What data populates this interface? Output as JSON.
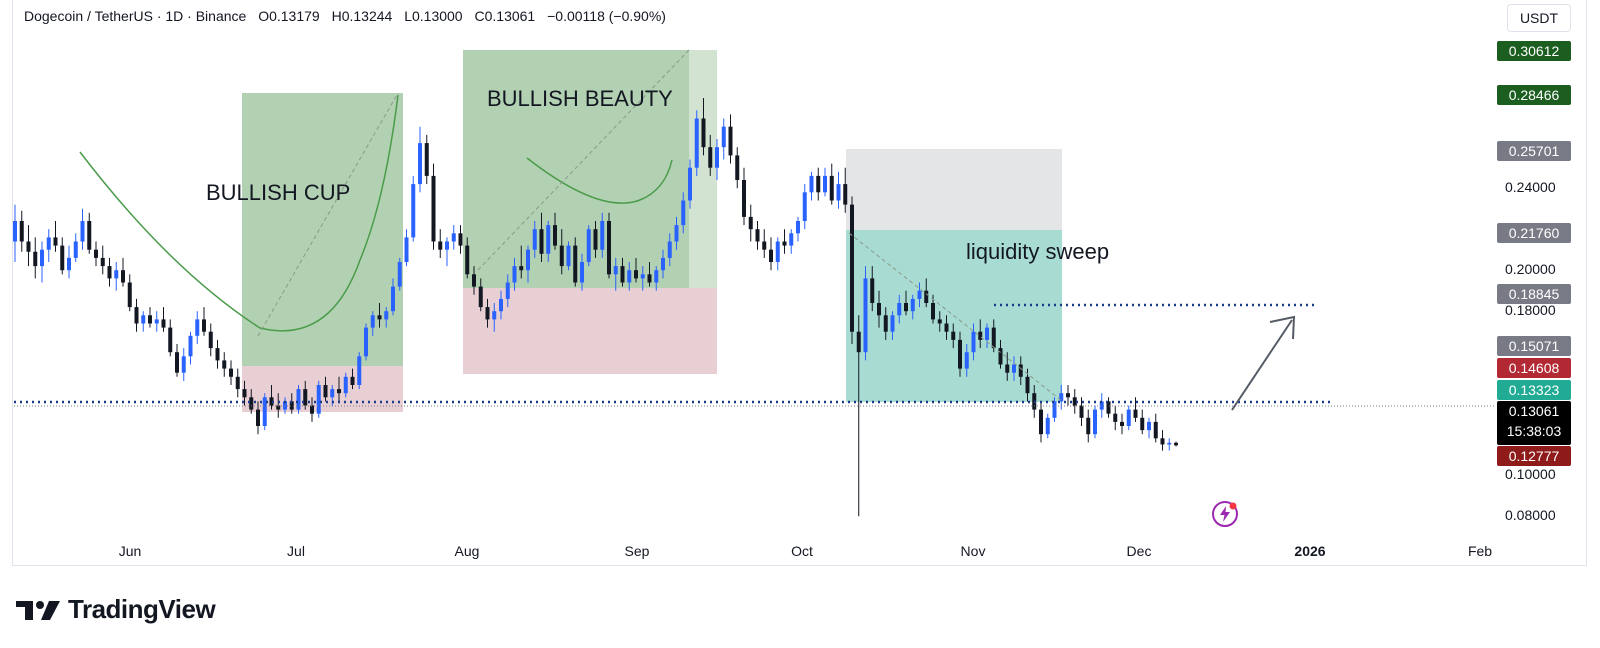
{
  "header": {
    "symbol": "Dogecoin / TetherUS · 1D · Binance",
    "open": "O0.13179",
    "high": "H0.13244",
    "low": "L0.13000",
    "close": "C0.13061",
    "change": "−0.00118 (−0.90%)"
  },
  "currency": "USDT",
  "annotations": {
    "cup": "BULLISH CUP",
    "beauty": "BULLISH BEAUTY",
    "sweep": "liquidity sweep"
  },
  "price_labels": [
    {
      "text": "0.30612",
      "color": "#1b5e20"
    },
    {
      "text": "0.28466",
      "color": "#1b5e20"
    },
    {
      "text": "0.25701",
      "color": "#787b86"
    },
    {
      "text": "0.21760",
      "color": "#787b86"
    },
    {
      "text": "0.18845",
      "color": "#787b86"
    },
    {
      "text": "0.15071",
      "color": "#787b86"
    },
    {
      "text": "0.14608",
      "color": "#b22833"
    },
    {
      "text": "0.13323",
      "color": "#22ab94"
    },
    {
      "text": "0.12777",
      "color": "#8e1a1a"
    }
  ],
  "current": {
    "price": "0.13061",
    "countdown": "15:38:03"
  },
  "y_ticks": [
    "0.24000",
    "0.20000",
    "0.18000",
    "0.10000",
    "0.08000"
  ],
  "x_ticks": [
    "Jun",
    "Jul",
    "Aug",
    "Sep",
    "Oct",
    "Nov",
    "Dec",
    "2026",
    "Feb"
  ],
  "brand": "TradingView",
  "icons": {
    "bolt": "lightning-icon",
    "logo": "tradingview-logo-icon"
  },
  "colors": {
    "up": "#2962ff",
    "down": "#131722",
    "cup_zone": "#a5c8a5",
    "sweep_zone": "#a8dcd2",
    "stop_zone": "#e8cfd4",
    "dotted_line": "#1a3a8a"
  },
  "chart_data": {
    "type": "candlestick",
    "ylim": [
      0.08,
      0.31
    ],
    "levels": {
      "support": 0.1325,
      "resistance": 0.18
    },
    "candles": [
      [
        0.23,
        0.248,
        0.22,
        0.24
      ],
      [
        0.24,
        0.245,
        0.225,
        0.23
      ],
      [
        0.23,
        0.238,
        0.218,
        0.225
      ],
      [
        0.225,
        0.232,
        0.212,
        0.218
      ],
      [
        0.218,
        0.23,
        0.21,
        0.226
      ],
      [
        0.226,
        0.236,
        0.22,
        0.232
      ],
      [
        0.232,
        0.24,
        0.225,
        0.228
      ],
      [
        0.228,
        0.232,
        0.214,
        0.216
      ],
      [
        0.216,
        0.228,
        0.212,
        0.222
      ],
      [
        0.222,
        0.234,
        0.22,
        0.23
      ],
      [
        0.23,
        0.246,
        0.226,
        0.24
      ],
      [
        0.24,
        0.244,
        0.224,
        0.226
      ],
      [
        0.226,
        0.23,
        0.218,
        0.222
      ],
      [
        0.222,
        0.228,
        0.214,
        0.218
      ],
      [
        0.218,
        0.222,
        0.208,
        0.212
      ],
      [
        0.212,
        0.22,
        0.206,
        0.216
      ],
      [
        0.216,
        0.222,
        0.208,
        0.21
      ],
      [
        0.21,
        0.214,
        0.196,
        0.198
      ],
      [
        0.198,
        0.202,
        0.186,
        0.19
      ],
      [
        0.19,
        0.196,
        0.186,
        0.194
      ],
      [
        0.194,
        0.198,
        0.188,
        0.19
      ],
      [
        0.19,
        0.196,
        0.186,
        0.192
      ],
      [
        0.192,
        0.198,
        0.186,
        0.188
      ],
      [
        0.188,
        0.192,
        0.174,
        0.176
      ],
      [
        0.176,
        0.18,
        0.164,
        0.166
      ],
      [
        0.166,
        0.178,
        0.162,
        0.174
      ],
      [
        0.174,
        0.186,
        0.17,
        0.184
      ],
      [
        0.184,
        0.196,
        0.18,
        0.192
      ],
      [
        0.192,
        0.198,
        0.184,
        0.186
      ],
      [
        0.186,
        0.19,
        0.174,
        0.178
      ],
      [
        0.178,
        0.182,
        0.168,
        0.172
      ],
      [
        0.172,
        0.176,
        0.164,
        0.168
      ],
      [
        0.168,
        0.172,
        0.16,
        0.164
      ],
      [
        0.164,
        0.168,
        0.154,
        0.158
      ],
      [
        0.158,
        0.162,
        0.15,
        0.154
      ],
      [
        0.154,
        0.158,
        0.146,
        0.148
      ],
      [
        0.148,
        0.152,
        0.136,
        0.14
      ],
      [
        0.14,
        0.156,
        0.138,
        0.154
      ],
      [
        0.154,
        0.16,
        0.148,
        0.15
      ],
      [
        0.15,
        0.156,
        0.144,
        0.148
      ],
      [
        0.148,
        0.154,
        0.146,
        0.152
      ],
      [
        0.152,
        0.156,
        0.146,
        0.148
      ],
      [
        0.148,
        0.16,
        0.146,
        0.158
      ],
      [
        0.158,
        0.162,
        0.148,
        0.15
      ],
      [
        0.15,
        0.154,
        0.142,
        0.146
      ],
      [
        0.146,
        0.162,
        0.144,
        0.16
      ],
      [
        0.16,
        0.164,
        0.152,
        0.154
      ],
      [
        0.154,
        0.16,
        0.15,
        0.158
      ],
      [
        0.158,
        0.164,
        0.152,
        0.156
      ],
      [
        0.156,
        0.166,
        0.154,
        0.164
      ],
      [
        0.164,
        0.168,
        0.158,
        0.16
      ],
      [
        0.16,
        0.176,
        0.158,
        0.174
      ],
      [
        0.174,
        0.19,
        0.172,
        0.188
      ],
      [
        0.188,
        0.196,
        0.184,
        0.194
      ],
      [
        0.194,
        0.2,
        0.188,
        0.192
      ],
      [
        0.192,
        0.198,
        0.188,
        0.196
      ],
      [
        0.196,
        0.212,
        0.194,
        0.208
      ],
      [
        0.208,
        0.222,
        0.206,
        0.22
      ],
      [
        0.22,
        0.236,
        0.218,
        0.232
      ],
      [
        0.232,
        0.262,
        0.23,
        0.258
      ],
      [
        0.258,
        0.286,
        0.254,
        0.278
      ],
      [
        0.278,
        0.282,
        0.258,
        0.262
      ],
      [
        0.262,
        0.268,
        0.226,
        0.23
      ],
      [
        0.23,
        0.236,
        0.222,
        0.226
      ],
      [
        0.226,
        0.232,
        0.218,
        0.23
      ],
      [
        0.23,
        0.238,
        0.226,
        0.234
      ],
      [
        0.234,
        0.238,
        0.224,
        0.228
      ],
      [
        0.228,
        0.232,
        0.212,
        0.214
      ],
      [
        0.214,
        0.218,
        0.204,
        0.208
      ],
      [
        0.208,
        0.212,
        0.196,
        0.198
      ],
      [
        0.198,
        0.202,
        0.188,
        0.192
      ],
      [
        0.192,
        0.2,
        0.186,
        0.196
      ],
      [
        0.196,
        0.206,
        0.192,
        0.202
      ],
      [
        0.202,
        0.214,
        0.198,
        0.21
      ],
      [
        0.21,
        0.222,
        0.206,
        0.218
      ],
      [
        0.218,
        0.228,
        0.212,
        0.216
      ],
      [
        0.216,
        0.228,
        0.21,
        0.226
      ],
      [
        0.226,
        0.24,
        0.222,
        0.236
      ],
      [
        0.236,
        0.244,
        0.22,
        0.224
      ],
      [
        0.224,
        0.24,
        0.22,
        0.238
      ],
      [
        0.238,
        0.244,
        0.226,
        0.228
      ],
      [
        0.228,
        0.236,
        0.214,
        0.218
      ],
      [
        0.218,
        0.23,
        0.216,
        0.228
      ],
      [
        0.228,
        0.232,
        0.208,
        0.21
      ],
      [
        0.21,
        0.224,
        0.206,
        0.22
      ],
      [
        0.22,
        0.238,
        0.218,
        0.236
      ],
      [
        0.236,
        0.24,
        0.222,
        0.226
      ],
      [
        0.226,
        0.244,
        0.222,
        0.24
      ],
      [
        0.24,
        0.244,
        0.212,
        0.214
      ],
      [
        0.214,
        0.222,
        0.206,
        0.218
      ],
      [
        0.218,
        0.222,
        0.208,
        0.21
      ],
      [
        0.21,
        0.22,
        0.206,
        0.216
      ],
      [
        0.216,
        0.222,
        0.21,
        0.212
      ],
      [
        0.212,
        0.218,
        0.206,
        0.214
      ],
      [
        0.214,
        0.22,
        0.208,
        0.21
      ],
      [
        0.21,
        0.218,
        0.206,
        0.216
      ],
      [
        0.216,
        0.226,
        0.212,
        0.222
      ],
      [
        0.222,
        0.234,
        0.218,
        0.23
      ],
      [
        0.23,
        0.242,
        0.226,
        0.238
      ],
      [
        0.238,
        0.254,
        0.234,
        0.25
      ],
      [
        0.25,
        0.27,
        0.246,
        0.266
      ],
      [
        0.266,
        0.294,
        0.262,
        0.29
      ],
      [
        0.29,
        0.3,
        0.272,
        0.276
      ],
      [
        0.276,
        0.282,
        0.262,
        0.266
      ],
      [
        0.266,
        0.28,
        0.26,
        0.276
      ],
      [
        0.276,
        0.29,
        0.27,
        0.286
      ],
      [
        0.286,
        0.292,
        0.268,
        0.272
      ],
      [
        0.272,
        0.276,
        0.256,
        0.26
      ],
      [
        0.26,
        0.266,
        0.238,
        0.242
      ],
      [
        0.242,
        0.248,
        0.23,
        0.236
      ],
      [
        0.236,
        0.24,
        0.226,
        0.23
      ],
      [
        0.23,
        0.236,
        0.222,
        0.226
      ],
      [
        0.226,
        0.232,
        0.216,
        0.22
      ],
      [
        0.22,
        0.232,
        0.216,
        0.23
      ],
      [
        0.23,
        0.236,
        0.224,
        0.228
      ],
      [
        0.228,
        0.236,
        0.224,
        0.234
      ],
      [
        0.234,
        0.242,
        0.23,
        0.24
      ],
      [
        0.24,
        0.258,
        0.236,
        0.254
      ],
      [
        0.254,
        0.264,
        0.25,
        0.262
      ],
      [
        0.262,
        0.266,
        0.25,
        0.254
      ],
      [
        0.254,
        0.266,
        0.252,
        0.262
      ],
      [
        0.262,
        0.268,
        0.248,
        0.25
      ],
      [
        0.25,
        0.264,
        0.246,
        0.258
      ],
      [
        0.258,
        0.266,
        0.244,
        0.248
      ],
      [
        0.248,
        0.252,
        0.18,
        0.186
      ],
      [
        0.186,
        0.194,
        0.096,
        0.176
      ],
      [
        0.176,
        0.218,
        0.172,
        0.212
      ],
      [
        0.212,
        0.218,
        0.196,
        0.2
      ],
      [
        0.2,
        0.206,
        0.188,
        0.194
      ],
      [
        0.194,
        0.198,
        0.182,
        0.186
      ],
      [
        0.186,
        0.196,
        0.182,
        0.194
      ],
      [
        0.194,
        0.204,
        0.19,
        0.2
      ],
      [
        0.2,
        0.206,
        0.194,
        0.196
      ],
      [
        0.196,
        0.204,
        0.192,
        0.202
      ],
      [
        0.202,
        0.21,
        0.198,
        0.206
      ],
      [
        0.206,
        0.212,
        0.198,
        0.2
      ],
      [
        0.2,
        0.204,
        0.19,
        0.192
      ],
      [
        0.192,
        0.196,
        0.186,
        0.19
      ],
      [
        0.19,
        0.194,
        0.182,
        0.186
      ],
      [
        0.186,
        0.19,
        0.178,
        0.182
      ],
      [
        0.182,
        0.186,
        0.164,
        0.168
      ],
      [
        0.168,
        0.18,
        0.164,
        0.176
      ],
      [
        0.176,
        0.19,
        0.172,
        0.186
      ],
      [
        0.186,
        0.192,
        0.178,
        0.182
      ],
      [
        0.182,
        0.19,
        0.178,
        0.188
      ],
      [
        0.188,
        0.192,
        0.176,
        0.178
      ],
      [
        0.178,
        0.182,
        0.168,
        0.17
      ],
      [
        0.17,
        0.176,
        0.162,
        0.166
      ],
      [
        0.166,
        0.174,
        0.162,
        0.17
      ],
      [
        0.17,
        0.174,
        0.16,
        0.164
      ],
      [
        0.164,
        0.168,
        0.152,
        0.156
      ],
      [
        0.156,
        0.16,
        0.144,
        0.148
      ],
      [
        0.148,
        0.152,
        0.132,
        0.136
      ],
      [
        0.136,
        0.146,
        0.134,
        0.144
      ],
      [
        0.144,
        0.154,
        0.142,
        0.152
      ],
      [
        0.152,
        0.16,
        0.148,
        0.156
      ],
      [
        0.156,
        0.16,
        0.15,
        0.154
      ],
      [
        0.154,
        0.158,
        0.146,
        0.15
      ],
      [
        0.15,
        0.154,
        0.14,
        0.144
      ],
      [
        0.144,
        0.148,
        0.132,
        0.136
      ],
      [
        0.136,
        0.15,
        0.134,
        0.148
      ],
      [
        0.148,
        0.156,
        0.144,
        0.152
      ],
      [
        0.152,
        0.154,
        0.144,
        0.146
      ],
      [
        0.146,
        0.15,
        0.138,
        0.142
      ],
      [
        0.142,
        0.146,
        0.136,
        0.14
      ],
      [
        0.14,
        0.15,
        0.138,
        0.148
      ],
      [
        0.148,
        0.154,
        0.142,
        0.144
      ],
      [
        0.144,
        0.148,
        0.136,
        0.138
      ],
      [
        0.138,
        0.144,
        0.134,
        0.142
      ],
      [
        0.142,
        0.146,
        0.132,
        0.134
      ],
      [
        0.134,
        0.138,
        0.128,
        0.131
      ],
      [
        0.131,
        0.134,
        0.128,
        0.1318
      ],
      [
        0.1318,
        0.1324,
        0.13,
        0.1306
      ]
    ]
  }
}
